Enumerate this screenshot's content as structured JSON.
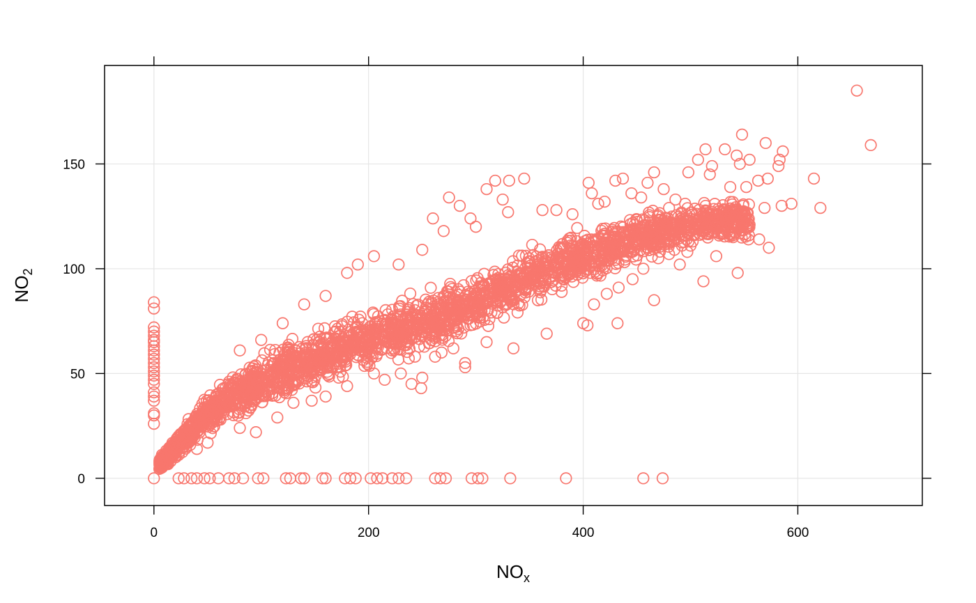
{
  "colors": {
    "points": "#F8766D",
    "grid": "#E5E5E5",
    "frame": "#000000",
    "background": "#FFFFFF"
  },
  "chart_data": {
    "type": "scatter",
    "title": "",
    "xlabel": {
      "main": "NO",
      "sub": "x"
    },
    "ylabel": {
      "main": "NO",
      "sub": "2"
    },
    "xlim": [
      -46,
      716
    ],
    "ylim": [
      -13,
      197
    ],
    "x_ticks": [
      0,
      200,
      400,
      600
    ],
    "y_ticks": [
      0,
      50,
      100,
      150
    ],
    "x_tick_labels": [
      "0",
      "200",
      "400",
      "600"
    ],
    "y_tick_labels": [
      "0",
      "50",
      "100",
      "150"
    ],
    "grid": true,
    "legend": null,
    "marker": "open-circle",
    "dense_region": {
      "description": "main cloud of points between the lower and upper bound curves",
      "x_range": [
        5,
        555
      ],
      "lower_bound": [
        [
          5,
          3
        ],
        [
          50,
          20
        ],
        [
          100,
          32
        ],
        [
          150,
          40
        ],
        [
          200,
          47
        ],
        [
          250,
          55
        ],
        [
          300,
          67
        ],
        [
          350,
          80
        ],
        [
          400,
          90
        ],
        [
          450,
          100
        ],
        [
          500,
          110
        ],
        [
          555,
          112
        ]
      ],
      "upper_bound": [
        [
          5,
          10
        ],
        [
          50,
          42
        ],
        [
          100,
          62
        ],
        [
          150,
          75
        ],
        [
          200,
          84
        ],
        [
          250,
          92
        ],
        [
          300,
          100
        ],
        [
          350,
          112
        ],
        [
          400,
          122
        ],
        [
          450,
          128
        ],
        [
          500,
          132
        ],
        [
          555,
          135
        ]
      ]
    },
    "points": [
      [
        655,
        185
      ],
      [
        668,
        159
      ],
      [
        548,
        164
      ],
      [
        570,
        160
      ],
      [
        586,
        156
      ],
      [
        532,
        157
      ],
      [
        514,
        157
      ],
      [
        583,
        152
      ],
      [
        555,
        152
      ],
      [
        543,
        154
      ],
      [
        582,
        149
      ],
      [
        507,
        152
      ],
      [
        520,
        149
      ],
      [
        546,
        150
      ],
      [
        615,
        143
      ],
      [
        572,
        143
      ],
      [
        563,
        142
      ],
      [
        552,
        139
      ],
      [
        537,
        139
      ],
      [
        518,
        145
      ],
      [
        498,
        146
      ],
      [
        466,
        146
      ],
      [
        621,
        129
      ],
      [
        594,
        131
      ],
      [
        585,
        130
      ],
      [
        569,
        129
      ],
      [
        549,
        130
      ],
      [
        555,
        121
      ],
      [
        546,
        117
      ],
      [
        573,
        110
      ],
      [
        564,
        114
      ],
      [
        544,
        98
      ],
      [
        512,
        94
      ],
      [
        554,
        114
      ],
      [
        526,
        117
      ],
      [
        506,
        120
      ],
      [
        524,
        106
      ],
      [
        497,
        108
      ],
      [
        490,
        102
      ],
      [
        470,
        112
      ],
      [
        466,
        85
      ],
      [
        432,
        74
      ],
      [
        400,
        74
      ],
      [
        404,
        73
      ],
      [
        366,
        69
      ],
      [
        290,
        55
      ],
      [
        279,
        62
      ],
      [
        268,
        60
      ],
      [
        262,
        58
      ],
      [
        249,
        43
      ],
      [
        250,
        48
      ],
      [
        290,
        53
      ],
      [
        335,
        62
      ],
      [
        310,
        65
      ],
      [
        240,
        45
      ],
      [
        230,
        50
      ],
      [
        215,
        47
      ],
      [
        205,
        50
      ],
      [
        180,
        44
      ],
      [
        160,
        39
      ],
      [
        147,
        37
      ],
      [
        130,
        36
      ],
      [
        115,
        29
      ],
      [
        95,
        22
      ],
      [
        80,
        24
      ],
      [
        62,
        28
      ],
      [
        50,
        17
      ],
      [
        40,
        14
      ],
      [
        30,
        15
      ],
      [
        20,
        10
      ],
      [
        65,
        43
      ],
      [
        80,
        61
      ],
      [
        100,
        66
      ],
      [
        120,
        74
      ],
      [
        140,
        83
      ],
      [
        160,
        87
      ],
      [
        180,
        98
      ],
      [
        190,
        102
      ],
      [
        205,
        106
      ],
      [
        228,
        102
      ],
      [
        250,
        109
      ],
      [
        270,
        118
      ],
      [
        275,
        134
      ],
      [
        285,
        130
      ],
      [
        295,
        124
      ],
      [
        300,
        120
      ],
      [
        310,
        138
      ],
      [
        318,
        142
      ],
      [
        325,
        133
      ],
      [
        331,
        142
      ],
      [
        345,
        143
      ],
      [
        362,
        128
      ],
      [
        375,
        128
      ],
      [
        390,
        126
      ],
      [
        405,
        141
      ],
      [
        414,
        131
      ],
      [
        430,
        142
      ],
      [
        437,
        143
      ],
      [
        445,
        136
      ],
      [
        454,
        134
      ],
      [
        460,
        141
      ],
      [
        475,
        138
      ],
      [
        480,
        129
      ],
      [
        486,
        133
      ],
      [
        495,
        131
      ],
      [
        260,
        124
      ],
      [
        330,
        127
      ],
      [
        408,
        136
      ],
      [
        420,
        132
      ],
      [
        448,
        121
      ],
      [
        466,
        111
      ],
      [
        480,
        107
      ],
      [
        492,
        111
      ],
      [
        502,
        113
      ],
      [
        512,
        118
      ],
      [
        522,
        122
      ],
      [
        530,
        118
      ],
      [
        410,
        83
      ],
      [
        422,
        88
      ],
      [
        433,
        91
      ],
      [
        446,
        95
      ],
      [
        456,
        100
      ],
      [
        470,
        105
      ],
      [
        485,
        109
      ],
      [
        500,
        111
      ],
      [
        0,
        84
      ],
      [
        0,
        81
      ],
      [
        0,
        72
      ],
      [
        0,
        70
      ],
      [
        0,
        68
      ],
      [
        0,
        66
      ],
      [
        0,
        65
      ],
      [
        0,
        63
      ],
      [
        0,
        61
      ],
      [
        0,
        59
      ],
      [
        0,
        57
      ],
      [
        0,
        55
      ],
      [
        0,
        53
      ],
      [
        0,
        51
      ],
      [
        0,
        49
      ],
      [
        0,
        47
      ],
      [
        0,
        45
      ],
      [
        0,
        41
      ],
      [
        0,
        39
      ],
      [
        0,
        37
      ],
      [
        0,
        31
      ],
      [
        0,
        30
      ],
      [
        0,
        26
      ],
      [
        0,
        0
      ],
      [
        23,
        0
      ],
      [
        28,
        0
      ],
      [
        35,
        0
      ],
      [
        40,
        0
      ],
      [
        47,
        0
      ],
      [
        52,
        0
      ],
      [
        60,
        0
      ],
      [
        70,
        0
      ],
      [
        75,
        0
      ],
      [
        83,
        0
      ],
      [
        97,
        0
      ],
      [
        102,
        0
      ],
      [
        123,
        0
      ],
      [
        127,
        0
      ],
      [
        137,
        0
      ],
      [
        140,
        0
      ],
      [
        157,
        0
      ],
      [
        160,
        0
      ],
      [
        178,
        0
      ],
      [
        183,
        0
      ],
      [
        188,
        0
      ],
      [
        202,
        0
      ],
      [
        208,
        0
      ],
      [
        213,
        0
      ],
      [
        222,
        0
      ],
      [
        228,
        0
      ],
      [
        235,
        0
      ],
      [
        262,
        0
      ],
      [
        267,
        0
      ],
      [
        272,
        0
      ],
      [
        296,
        0
      ],
      [
        302,
        0
      ],
      [
        306,
        0
      ],
      [
        332,
        0
      ],
      [
        384,
        0
      ],
      [
        456,
        0
      ],
      [
        474,
        0
      ]
    ]
  }
}
